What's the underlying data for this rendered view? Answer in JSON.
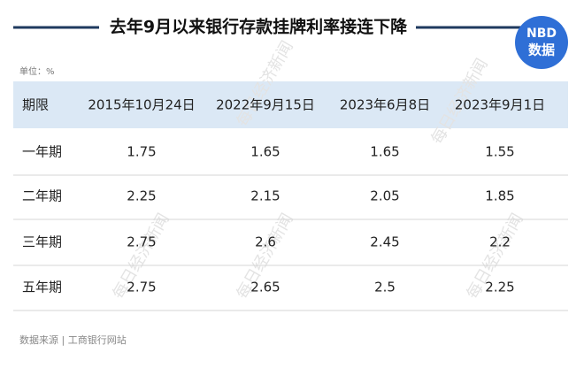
{
  "header": {
    "title": "去年9月以来银行存款挂牌利率接连下降",
    "unit": "单位：%",
    "logo": {
      "line1": "NBD",
      "line2": "数据"
    }
  },
  "watermark": "每日经济新闻",
  "table": {
    "columns": [
      "期限",
      "2015年10月24日",
      "2022年9月15日",
      "2023年6月8日",
      "2023年9月1日"
    ],
    "rows": [
      [
        "一年期",
        1.75,
        1.65,
        1.65,
        1.55
      ],
      [
        "二年期",
        2.25,
        2.15,
        2.05,
        1.85
      ],
      [
        "三年期",
        2.75,
        2.6,
        2.45,
        2.2
      ],
      [
        "五年期",
        2.75,
        2.65,
        2.5,
        2.25
      ]
    ]
  },
  "source": "数据来源 | 工商银行网站"
}
